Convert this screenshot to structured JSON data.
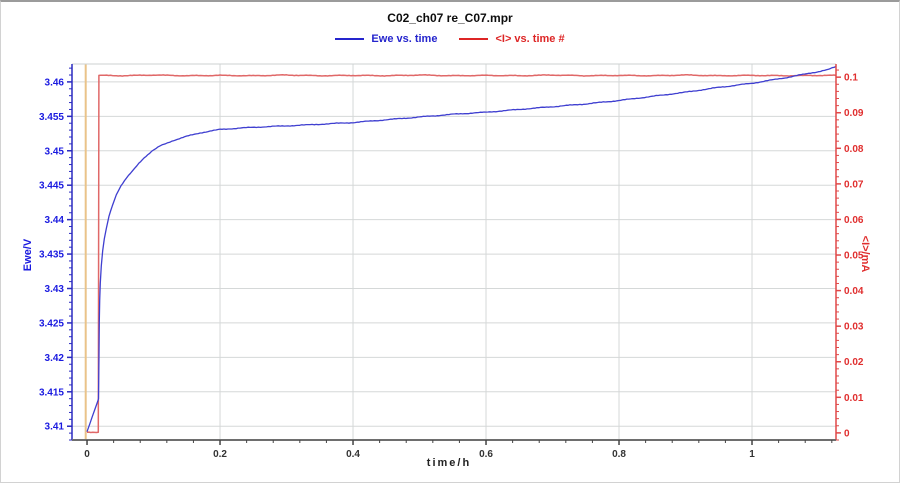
{
  "chart_data": {
    "type": "line",
    "title": "C02_ch07 re_C07.mpr",
    "xlabel": "time/h",
    "ylabel_left": "Ewe/V",
    "ylabel_right": "<I>/mA",
    "xlim": [
      -0.0226,
      1.1263
    ],
    "ylim_left": [
      3.408,
      3.4626
    ],
    "ylim_right": [
      -0.002,
      0.1037
    ],
    "xticks": [
      0,
      0.2,
      0.4,
      0.6,
      0.8,
      1
    ],
    "yticks_left": [
      3.41,
      3.415,
      3.42,
      3.425,
      3.43,
      3.435,
      3.44,
      3.445,
      3.45,
      3.455,
      3.46
    ],
    "yticks_right": [
      0,
      0.01,
      0.02,
      0.03,
      0.04,
      0.05,
      0.06,
      0.07,
      0.08,
      0.09,
      0.1
    ],
    "minor_step_x": 0.04,
    "minor_step_left": 0.001,
    "minor_step_right": 0.002,
    "grid": true,
    "legend_position": "top-center",
    "marker_line": {
      "x": -0.002,
      "color": "#eac389"
    },
    "colors": {
      "grid": "#d5d8d8",
      "spine_top": "#ccd2d2",
      "axis_left": "#2a2ac0",
      "axis_right": "#e04848",
      "axis_bottom": "#6e6e6e",
      "tick_bottom": "#444444",
      "tick_label_left": "#1a1ae0",
      "tick_label_right": "#e02e2e",
      "tick_label_bottom": "#333333"
    },
    "series": [
      {
        "id": "ewe",
        "name": "Ewe vs. time",
        "axis": "left",
        "color": "#3f3fd0",
        "width": 1.3,
        "noise": 0.45,
        "points": [
          [
            0,
            3.4092
          ],
          [
            0.004,
            3.4103
          ],
          [
            0.008,
            3.4114
          ],
          [
            0.012,
            3.4125
          ],
          [
            0.016,
            3.4136
          ],
          [
            0.0172,
            3.414
          ],
          [
            0.0176,
            3.4165
          ],
          [
            0.018,
            3.4205
          ],
          [
            0.0185,
            3.4252
          ],
          [
            0.019,
            3.4283
          ],
          [
            0.02,
            3.4308
          ],
          [
            0.0215,
            3.4333
          ],
          [
            0.0235,
            3.4355
          ],
          [
            0.026,
            3.4372
          ],
          [
            0.029,
            3.4387
          ],
          [
            0.033,
            3.4405
          ],
          [
            0.038,
            3.442
          ],
          [
            0.044,
            3.4436
          ],
          [
            0.051,
            3.4449
          ],
          [
            0.059,
            3.446
          ],
          [
            0.068,
            3.447
          ],
          [
            0.078,
            3.4482
          ],
          [
            0.086,
            3.449
          ],
          [
            0.097,
            3.4499
          ],
          [
            0.11,
            3.4507
          ],
          [
            0.13,
            3.4515
          ],
          [
            0.15,
            3.4521
          ],
          [
            0.17,
            3.4526
          ],
          [
            0.2,
            3.4531
          ],
          [
            0.23,
            3.4533
          ],
          [
            0.27,
            3.4535
          ],
          [
            0.32,
            3.4537
          ],
          [
            0.36,
            3.4539
          ],
          [
            0.4,
            3.4541
          ],
          [
            0.45,
            3.4545
          ],
          [
            0.5,
            3.4549
          ],
          [
            0.55,
            3.4553
          ],
          [
            0.6,
            3.4556
          ],
          [
            0.65,
            3.456
          ],
          [
            0.7,
            3.4564
          ],
          [
            0.75,
            3.4568
          ],
          [
            0.8,
            3.4573
          ],
          [
            0.85,
            3.4579
          ],
          [
            0.9,
            3.4585
          ],
          [
            0.95,
            3.4592
          ],
          [
            1.0,
            3.4598
          ],
          [
            1.05,
            3.4606
          ],
          [
            1.1,
            3.4615
          ],
          [
            1.115,
            3.4618
          ],
          [
            1.126,
            3.4622
          ]
        ]
      },
      {
        "id": "current",
        "name": "<I> vs. time #",
        "axis": "right",
        "color": "#e06868",
        "width": 1.5,
        "noise": 0.4,
        "points": [
          [
            0,
            0.0002
          ],
          [
            0.017,
            0.0002
          ],
          [
            0.0178,
            0.1005
          ],
          [
            0.05,
            0.1004
          ],
          [
            0.1,
            0.1006
          ],
          [
            0.15,
            0.1004
          ],
          [
            0.2,
            0.1005
          ],
          [
            0.25,
            0.1004
          ],
          [
            0.3,
            0.1006
          ],
          [
            0.35,
            0.1004
          ],
          [
            0.4,
            0.1005
          ],
          [
            0.45,
            0.1004
          ],
          [
            0.5,
            0.1006
          ],
          [
            0.55,
            0.1004
          ],
          [
            0.6,
            0.1005
          ],
          [
            0.65,
            0.1004
          ],
          [
            0.7,
            0.1006
          ],
          [
            0.75,
            0.1004
          ],
          [
            0.8,
            0.1005
          ],
          [
            0.85,
            0.1004
          ],
          [
            0.9,
            0.1006
          ],
          [
            0.95,
            0.1004
          ],
          [
            1.0,
            0.1005
          ],
          [
            1.05,
            0.1004
          ],
          [
            1.1,
            0.1005
          ],
          [
            1.126,
            0.1005
          ]
        ]
      }
    ]
  },
  "legend": {
    "items": [
      {
        "label": "Ewe vs. time",
        "color": "#2525cd"
      },
      {
        "label": "<I> vs. time #",
        "color": "#dd2525"
      }
    ]
  }
}
